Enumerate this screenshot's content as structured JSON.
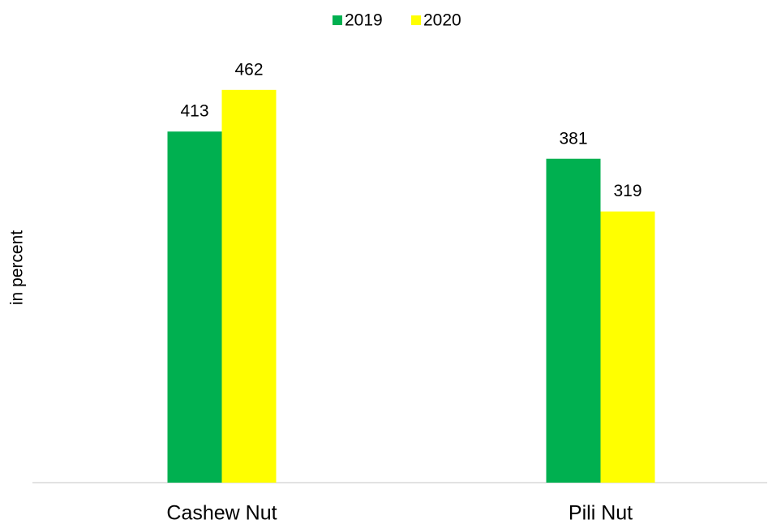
{
  "chart_data": {
    "type": "bar",
    "y_label": "in percent",
    "categories": [
      "Cashew Nut",
      "Pili Nut"
    ],
    "series": [
      {
        "name": "2019",
        "color": "#00b050",
        "values": [
          413,
          381
        ]
      },
      {
        "name": "2020",
        "color": "#ffff00",
        "values": [
          462,
          319
        ]
      }
    ],
    "ylim": [
      0,
      500
    ],
    "legend": "top"
  }
}
